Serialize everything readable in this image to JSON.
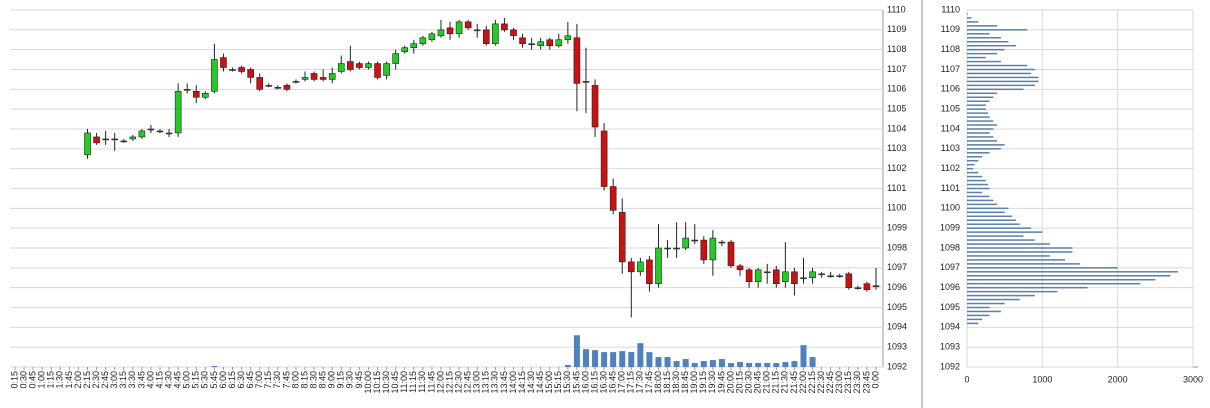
{
  "chart_data": [
    {
      "type": "candlestick",
      "categories": [
        "0:15",
        "0:30",
        "0:45",
        "1:00",
        "1:15",
        "1:30",
        "1:45",
        "2:00",
        "2:15",
        "2:30",
        "2:45",
        "3:00",
        "3:15",
        "3:30",
        "3:45",
        "4:00",
        "4:15",
        "4:30",
        "4:45",
        "5:00",
        "5:15",
        "5:30",
        "5:45",
        "6:00",
        "6:15",
        "6:30",
        "6:45",
        "7:00",
        "7:15",
        "7:30",
        "7:45",
        "8:00",
        "8:15",
        "8:30",
        "8:45",
        "9:00",
        "9:15",
        "9:30",
        "9:45",
        "10:00",
        "10:15",
        "10:30",
        "10:45",
        "11:00",
        "11:15",
        "11:30",
        "11:45",
        "12:00",
        "12:15",
        "12:30",
        "12:45",
        "13:00",
        "13:15",
        "13:30",
        "13:45",
        "14:00",
        "14:15",
        "14:30",
        "14:45",
        "15:00",
        "15:15",
        "15:30",
        "15:45",
        "16:00",
        "16:15",
        "16:30",
        "16:45",
        "17:00",
        "17:15",
        "17:30",
        "17:45",
        "18:00",
        "18:15",
        "18:30",
        "18:45",
        "19:00",
        "19:15",
        "19:30",
        "19:45",
        "20:00",
        "20:15",
        "20:30",
        "20:45",
        "21:00",
        "21:15",
        "21:30",
        "21:45",
        "22:00",
        "22:15",
        "22:30",
        "22:45",
        "23:00",
        "23:15",
        "23:30",
        "23:45",
        "0:00"
      ],
      "open": [
        null,
        null,
        null,
        null,
        null,
        null,
        null,
        null,
        1102.7,
        1103.6,
        1103.5,
        1103.5,
        1103.4,
        1103.5,
        1103.6,
        1104,
        1103.9,
        1103.8,
        1103.8,
        1106,
        1105.9,
        1105.6,
        1105.9,
        1107.6,
        1107,
        1107.1,
        1107,
        1106.6,
        1106.2,
        1106.1,
        1106.2,
        1106.4,
        1106.5,
        1106.8,
        1106.6,
        1106.5,
        1106.9,
        1107.4,
        1107.3,
        1107.1,
        1107.3,
        1106.7,
        1107.3,
        1107.9,
        1108.1,
        1108.3,
        1108.5,
        1108.7,
        1109.1,
        1108.8,
        1109.4,
        1109,
        1109,
        1108.3,
        1109.3,
        1109,
        1108.6,
        1108.3,
        1108.2,
        1108.5,
        1108.2,
        1108.5,
        1108.6,
        1106.4,
        1106.2,
        1103.9,
        1101.1,
        1099.8,
        1097.3,
        1096.8,
        1097.4,
        1096.2,
        1098,
        1098,
        1098,
        1098.4,
        1098.4,
        1097.4,
        1098.3,
        1098.3,
        1097.1,
        1096.9,
        1096.3,
        1096.8,
        1096.9,
        1096.3,
        1096.8,
        1096.5,
        1096.5,
        1096.7,
        1096.6,
        1096.6,
        1096.7,
        1096,
        1096.2,
        1096.1
      ],
      "high": [
        null,
        null,
        null,
        null,
        null,
        null,
        null,
        null,
        1104,
        1103.8,
        1103.9,
        1103.8,
        1103.5,
        1103.7,
        1104,
        1104.2,
        1104,
        1104,
        1106.3,
        1106.3,
        1106.2,
        1105.9,
        1108.3,
        1107.8,
        1107.1,
        1107.2,
        1107.1,
        1106.8,
        1106.3,
        1106.2,
        1106.3,
        1106.5,
        1106.9,
        1106.9,
        1107,
        1107.1,
        1107.7,
        1108.2,
        1107.4,
        1107.4,
        1107.4,
        1107.4,
        1108,
        1108.2,
        1108.5,
        1108.7,
        1108.9,
        1109.5,
        1109.4,
        1109.5,
        1109.5,
        1109.3,
        1109.2,
        1109.5,
        1109.6,
        1109.1,
        1108.8,
        1108.6,
        1108.6,
        1108.6,
        1108.8,
        1109.4,
        1109.3,
        1108.1,
        1106.5,
        1104.3,
        1101.5,
        1100.5,
        1097.5,
        1097.5,
        1097.6,
        1099.2,
        1098.4,
        1099.3,
        1099.3,
        1099.2,
        1098.6,
        1098.9,
        1098.4,
        1098.4,
        1097.2,
        1097,
        1097,
        1097.2,
        1097.1,
        1098.3,
        1097,
        1097.5,
        1097,
        1096.8,
        1096.8,
        1096.7,
        1096.8,
        1096.1,
        1096.3,
        1097
      ],
      "low": [
        null,
        null,
        null,
        null,
        null,
        null,
        null,
        null,
        1102.5,
        1103.2,
        1103.2,
        1102.9,
        1103.3,
        1103.4,
        1103.5,
        1103.8,
        1103.8,
        1103.6,
        1103.6,
        1105.8,
        1105.3,
        1105.5,
        1105.8,
        1106.9,
        1106.9,
        1106.8,
        1106.3,
        1105.9,
        1106.1,
        1106,
        1105.9,
        1106.3,
        1106.4,
        1106.4,
        1106.4,
        1106.3,
        1106.8,
        1106.9,
        1107,
        1107,
        1106.5,
        1106.5,
        1107,
        1107.8,
        1107.8,
        1108.2,
        1108.4,
        1108.6,
        1108.5,
        1108.6,
        1109,
        1108.6,
        1108.2,
        1108.2,
        1108.9,
        1108.5,
        1108.1,
        1108,
        1108,
        1108,
        1108.1,
        1108.3,
        1104.9,
        1104.8,
        1103.6,
        1100.9,
        1099.7,
        1096.7,
        1094.5,
        1096.6,
        1095.8,
        1096,
        1097.5,
        1097.5,
        1097.9,
        1098.2,
        1097.2,
        1096.6,
        1098.1,
        1097,
        1096.6,
        1096,
        1096,
        1096.2,
        1096,
        1096,
        1095.6,
        1096.2,
        1096.2,
        1096.5,
        1096.5,
        1096.5,
        1095.9,
        1095.9,
        1095.8,
        1095.9
      ],
      "close": [
        null,
        null,
        null,
        null,
        null,
        null,
        null,
        null,
        1103.8,
        1103.3,
        1103.5,
        1103.5,
        1103.4,
        1103.6,
        1103.9,
        1104,
        1103.9,
        1103.8,
        1105.9,
        1106,
        1105.6,
        1105.8,
        1107.5,
        1107.1,
        1107,
        1106.9,
        1106.6,
        1106,
        1106.2,
        1106.1,
        1106,
        1106.4,
        1106.6,
        1106.5,
        1106.5,
        1106.8,
        1107.3,
        1107,
        1107.1,
        1107.3,
        1106.6,
        1107.3,
        1107.8,
        1108.1,
        1108.3,
        1108.6,
        1108.8,
        1109,
        1108.8,
        1109.4,
        1109.1,
        1109,
        1108.3,
        1109.3,
        1109,
        1108.7,
        1108.3,
        1108.3,
        1108.4,
        1108.2,
        1108.5,
        1108.7,
        1106.3,
        1106.4,
        1104.1,
        1101.1,
        1099.9,
        1097.3,
        1096.8,
        1097.3,
        1096.2,
        1098,
        1098,
        1098,
        1098.5,
        1098.4,
        1097.4,
        1098.5,
        1098.3,
        1097.1,
        1096.9,
        1096.3,
        1096.9,
        1096.8,
        1096.2,
        1096.8,
        1096.2,
        1096.5,
        1096.8,
        1096.7,
        1096.6,
        1096.6,
        1096,
        1096,
        1095.9,
        1096.1
      ],
      "volume": [
        null,
        null,
        null,
        null,
        null,
        null,
        null,
        null,
        null,
        null,
        null,
        null,
        null,
        null,
        null,
        null,
        null,
        null,
        null,
        null,
        null,
        null,
        0.05,
        null,
        null,
        null,
        null,
        null,
        null,
        null,
        null,
        null,
        null,
        null,
        null,
        null,
        null,
        null,
        null,
        null,
        null,
        null,
        null,
        null,
        null,
        null,
        null,
        null,
        null,
        null,
        null,
        null,
        null,
        null,
        null,
        null,
        null,
        null,
        null,
        null,
        null,
        0.1,
        1.6,
        0.9,
        0.85,
        0.75,
        0.75,
        0.8,
        0.75,
        1.2,
        0.75,
        0.5,
        0.5,
        0.3,
        0.4,
        0.2,
        0.3,
        0.35,
        0.4,
        0.2,
        0.25,
        0.2,
        0.2,
        0.2,
        0.2,
        0.25,
        0.3,
        1.1,
        0.5,
        null,
        null,
        null,
        null,
        null,
        null,
        null
      ],
      "up_color": "#22cc22",
      "down_color": "#cc1111",
      "flat_color": "#333333",
      "volume_color": "#4f81bd",
      "ylim": [
        1092,
        1110
      ],
      "yticks": [
        1092,
        1093,
        1094,
        1095,
        1096,
        1097,
        1098,
        1099,
        1100,
        1101,
        1102,
        1103,
        1104,
        1105,
        1106,
        1107,
        1108,
        1109,
        1110
      ],
      "grid": true
    },
    {
      "type": "bar",
      "orientation": "horizontal",
      "y": [
        1094.2,
        1094.4,
        1094.6,
        1094.8,
        1095,
        1095.2,
        1095.4,
        1095.6,
        1095.8,
        1096,
        1096.2,
        1096.4,
        1096.6,
        1096.8,
        1097,
        1097.2,
        1097.4,
        1097.6,
        1097.8,
        1098,
        1098.2,
        1098.4,
        1098.6,
        1098.8,
        1099,
        1099.2,
        1099.4,
        1099.6,
        1099.8,
        1100,
        1100.2,
        1100.4,
        1100.6,
        1100.8,
        1101,
        1101.2,
        1101.4,
        1101.6,
        1101.8,
        1102,
        1102.2,
        1102.4,
        1102.6,
        1102.8,
        1103,
        1103.2,
        1103.4,
        1103.6,
        1103.8,
        1104,
        1104.2,
        1104.4,
        1104.6,
        1104.8,
        1105,
        1105.2,
        1105.4,
        1105.6,
        1105.8,
        1106,
        1106.2,
        1106.4,
        1106.6,
        1106.8,
        1107,
        1107.2,
        1107.4,
        1107.6,
        1107.8,
        1108,
        1108.2,
        1108.4,
        1108.6,
        1108.8,
        1109,
        1109.2,
        1109.4,
        1109.6,
        1109.8
      ],
      "values": [
        150,
        200,
        300,
        450,
        300,
        500,
        700,
        900,
        1200,
        1600,
        2300,
        2500,
        2700,
        2800,
        2000,
        1500,
        1300,
        1100,
        1400,
        1400,
        1100,
        900,
        750,
        1000,
        850,
        700,
        650,
        600,
        500,
        550,
        400,
        350,
        300,
        200,
        300,
        280,
        250,
        200,
        150,
        80,
        100,
        150,
        200,
        300,
        450,
        500,
        400,
        350,
        300,
        350,
        400,
        350,
        300,
        280,
        250,
        250,
        300,
        350,
        400,
        750,
        900,
        950,
        950,
        850,
        900,
        800,
        450,
        250,
        400,
        500,
        650,
        550,
        450,
        300,
        800,
        400,
        150,
        60,
        10
      ],
      "color": "#5b7fa6",
      "xlim": [
        0,
        3000
      ],
      "xticks": [
        0,
        1000,
        2000,
        3000
      ],
      "ylim": [
        1092,
        1110
      ],
      "yticks": [
        1092,
        1093,
        1094,
        1095,
        1096,
        1097,
        1098,
        1099,
        1100,
        1101,
        1102,
        1103,
        1104,
        1105,
        1106,
        1107,
        1108,
        1109,
        1110
      ],
      "grid": true
    }
  ]
}
